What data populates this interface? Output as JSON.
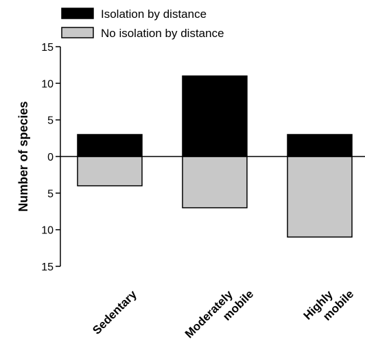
{
  "chart_data": {
    "type": "bar",
    "orientation": "diverging",
    "categories": [
      [
        "Sedentary"
      ],
      [
        "Moderately",
        "mobile"
      ],
      [
        "Highly",
        "mobile"
      ]
    ],
    "series": [
      {
        "name": "Isolation by distance",
        "values": [
          3,
          11,
          3
        ],
        "direction": "up",
        "color": "#000000"
      },
      {
        "name": "No isolation by distance",
        "values": [
          4,
          7,
          11
        ],
        "direction": "down",
        "color": "#c8c8c8"
      }
    ],
    "ylabel": "Number of species",
    "yticks": [
      "15",
      "10",
      "5",
      "0",
      "5",
      "10",
      "15"
    ],
    "ylim": [
      -15,
      15
    ],
    "legend_position": "top-left",
    "grid": false
  }
}
